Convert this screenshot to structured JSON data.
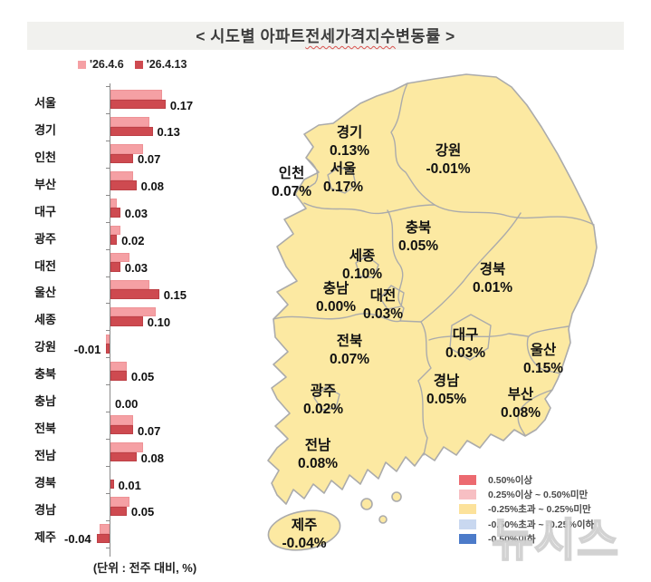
{
  "title": {
    "prefix": "< 시도별 아파트 ",
    "highlight": "전세가격지수",
    "suffix": " 변동률 >"
  },
  "watermark": "뉴시스",
  "chart_data": {
    "type": "bar",
    "orientation": "horizontal",
    "title": "< 시도별 아파트 전세가격지수 변동률 >",
    "unit_note": "(단위 : 전주 대비, %)",
    "unit": "%",
    "grid": false,
    "legend_position": "top-left",
    "xlim": [
      -0.06,
      0.2
    ],
    "categories": [
      "서울",
      "경기",
      "인천",
      "부산",
      "대구",
      "광주",
      "대전",
      "울산",
      "세종",
      "강원",
      "충북",
      "충남",
      "전북",
      "전남",
      "경북",
      "경남",
      "제주"
    ],
    "series": [
      {
        "name": "'26.4.6",
        "color": "#F5A0A4",
        "border_color": "#EE9296",
        "values": [
          0.16,
          0.12,
          0.1,
          0.07,
          0.02,
          0.03,
          0.06,
          0.12,
          0.14,
          -0.01,
          0.05,
          0.0,
          0.07,
          0.1,
          0.0,
          0.06,
          -0.03
        ]
      },
      {
        "name": "'26.4.13",
        "color": "#CE4A50",
        "border_color": "#BD4046",
        "values": [
          0.17,
          0.13,
          0.07,
          0.08,
          0.03,
          0.02,
          0.03,
          0.15,
          0.1,
          -0.01,
          0.05,
          0.0,
          0.07,
          0.08,
          0.01,
          0.05,
          -0.04
        ]
      }
    ],
    "value_label_series": "'26.4.13"
  },
  "map": {
    "fill": "#FCE9A2",
    "border": "#ABABAB",
    "regions": [
      {
        "key": "gyeonggi",
        "name": "경기",
        "value": "0.13%"
      },
      {
        "key": "gangwon",
        "name": "강원",
        "value": "-0.01%"
      },
      {
        "key": "incheon",
        "name": "인천",
        "value": "0.07%"
      },
      {
        "key": "seoul",
        "name": "서울",
        "value": "0.17%"
      },
      {
        "key": "chungbuk",
        "name": "충북",
        "value": "0.05%"
      },
      {
        "key": "sejong",
        "name": "세종",
        "value": "0.10%"
      },
      {
        "key": "chungnam",
        "name": "충남",
        "value": "0.00%"
      },
      {
        "key": "daejeon",
        "name": "대전",
        "value": "0.03%"
      },
      {
        "key": "gyeongbuk",
        "name": "경북",
        "value": "0.01%"
      },
      {
        "key": "daegu",
        "name": "대구",
        "value": "0.03%"
      },
      {
        "key": "ulsan",
        "name": "울산",
        "value": "0.15%"
      },
      {
        "key": "jeonbuk",
        "name": "전북",
        "value": "0.07%"
      },
      {
        "key": "gwangju",
        "name": "광주",
        "value": "0.02%"
      },
      {
        "key": "gyeongnam",
        "name": "경남",
        "value": "0.05%"
      },
      {
        "key": "busan",
        "name": "부산",
        "value": "0.08%"
      },
      {
        "key": "jeonnam",
        "name": "전남",
        "value": "0.08%"
      },
      {
        "key": "jeju",
        "name": "제주",
        "value": "-0.04%"
      }
    ],
    "legend": [
      {
        "color": "#EC6A70",
        "label": "0.50%이상"
      },
      {
        "color": "#F7BFC3",
        "label": "0.25%이상 ~ 0.50%미만"
      },
      {
        "color": "#FCE29B",
        "label": "-0.25%초과 ~ 0.25%미만"
      },
      {
        "color": "#C9D8F0",
        "label": "-0.50%초과 ~ -0.25%이하"
      },
      {
        "color": "#4C7BC9",
        "label": "-0.50%이하"
      }
    ]
  }
}
